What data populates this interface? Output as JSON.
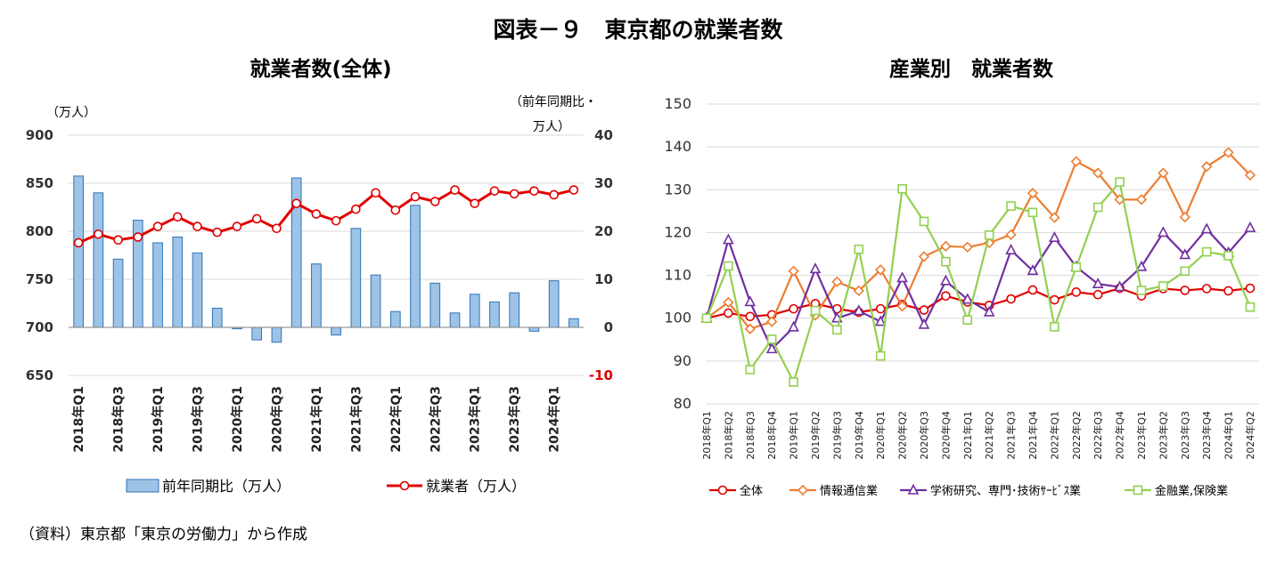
{
  "figure_title": "図表－９　東京都の就業者数",
  "source_note": "（資料）東京都「東京の労働力」から作成",
  "chart_data": [
    {
      "type": "bar",
      "title": "就業者数(全体)",
      "left_axis_unit": "（万人）",
      "right_axis_unit_line1": "（前年同期比・",
      "right_axis_unit_line2": "万人）",
      "y_left": {
        "ticks": [
          "650",
          "700",
          "750",
          "800",
          "850",
          "900"
        ],
        "ylim": [
          650,
          900
        ]
      },
      "y_right": {
        "ticks": [
          "-10",
          "0",
          "10",
          "20",
          "30",
          "40"
        ],
        "ylim": [
          -10,
          40
        ]
      },
      "quarters": [
        "2018Q1",
        "2018Q2",
        "2018Q3",
        "2018Q4",
        "2019Q1",
        "2019Q2",
        "2019Q3",
        "2019Q4",
        "2020Q1",
        "2020Q2",
        "2020Q3",
        "2020Q4",
        "2021Q1",
        "2021Q2",
        "2021Q3",
        "2021Q4",
        "2022Q1",
        "2022Q2",
        "2022Q3",
        "2022Q4",
        "2023Q1",
        "2023Q2",
        "2023Q3",
        "2023Q4",
        "2024Q1",
        "2024Q2"
      ],
      "x_tick_labels": [
        "2018年Q1",
        "2018年Q3",
        "2019年Q1",
        "2019年Q3",
        "2020年Q1",
        "2020年Q3",
        "2021年Q1",
        "2021年Q3",
        "2022年Q1",
        "2022年Q3",
        "2023年Q1",
        "2023年Q3",
        "2024年Q1"
      ],
      "series": [
        {
          "name": "前年同期比（万人）",
          "kind": "bar",
          "axis": "right",
          "color": "#9DC3E6",
          "edge": "#2E75B6",
          "values": [
            31.5,
            28.0,
            14.2,
            22.3,
            17.6,
            18.8,
            15.5,
            4.0,
            -0.3,
            -2.6,
            -3.1,
            31.1,
            13.2,
            -1.6,
            20.6,
            10.9,
            3.3,
            25.4,
            9.2,
            3.0,
            6.9,
            5.3,
            7.2,
            -0.8,
            9.7,
            1.8
          ]
        },
        {
          "name": "就業者（万人）",
          "kind": "line",
          "axis": "left",
          "color": "#E00000",
          "values": [
            788,
            797,
            791,
            794,
            805,
            815,
            805,
            799,
            805,
            813,
            803,
            829,
            818,
            811,
            823,
            840,
            822,
            836,
            831,
            843,
            829,
            842,
            839,
            842,
            838,
            843
          ]
        }
      ]
    },
    {
      "type": "line",
      "title": "産業別　就業者数",
      "y": {
        "ticks": [
          "80",
          "90",
          "100",
          "110",
          "120",
          "130",
          "140",
          "150"
        ],
        "ylim": [
          80,
          150
        ]
      },
      "categories": [
        "2018年Q1",
        "2018年Q2",
        "2018年Q3",
        "2018年Q4",
        "2019年Q1",
        "2019年Q2",
        "2019年Q3",
        "2019年Q4",
        "2020年Q1",
        "2020年Q2",
        "2020年Q3",
        "2020年Q4",
        "2021年Q1",
        "2021年Q2",
        "2021年Q3",
        "2021年Q4",
        "2022年Q1",
        "2022年Q2",
        "2022年Q3",
        "2022年Q4",
        "2023年Q1",
        "2023年Q2",
        "2023年Q3",
        "2023年Q4",
        "2024年Q1",
        "2024年Q2"
      ],
      "series": [
        {
          "name": "全体",
          "color": "#E00000",
          "marker": "circle",
          "values": [
            100.0,
            101.2,
            100.4,
            100.8,
            102.2,
            103.4,
            102.2,
            101.4,
            102.2,
            103.2,
            101.9,
            105.2,
            103.8,
            103.0,
            104.5,
            106.6,
            104.3,
            106.1,
            105.5,
            107.0,
            105.2,
            106.9,
            106.5,
            106.9,
            106.4,
            107.0
          ]
        },
        {
          "name": "情報通信業",
          "color": "#ED7D31",
          "marker": "diamond",
          "values": [
            100.0,
            103.7,
            97.5,
            99.2,
            111.0,
            100.7,
            108.5,
            106.4,
            111.3,
            102.8,
            114.4,
            116.8,
            116.6,
            117.6,
            119.5,
            129.2,
            123.5,
            136.6,
            133.9,
            127.7,
            127.7,
            133.9,
            123.6,
            135.4,
            138.7,
            133.4
          ]
        },
        {
          "name": "学術研究、専門･技術ｻｰﾋﾞｽ業",
          "color": "#7030A0",
          "marker": "triangle",
          "values": [
            100.0,
            118.3,
            103.8,
            92.8,
            97.9,
            111.5,
            100.0,
            101.7,
            99.2,
            109.4,
            98.5,
            108.7,
            104.4,
            101.4,
            115.9,
            111.1,
            118.8,
            112.0,
            108.0,
            107.3,
            112.0,
            120.0,
            114.8,
            120.8,
            115.3,
            121.1
          ]
        },
        {
          "name": "金融業,保険業",
          "color": "#92D050",
          "marker": "square",
          "values": [
            100.0,
            112.2,
            88.0,
            95.1,
            85.1,
            101.8,
            97.3,
            116.1,
            91.2,
            130.2,
            122.6,
            113.2,
            99.6,
            119.4,
            126.2,
            124.7,
            98.0,
            111.9,
            125.9,
            131.8,
            106.5,
            107.5,
            111.0,
            115.5,
            114.6,
            102.6
          ]
        }
      ]
    }
  ]
}
